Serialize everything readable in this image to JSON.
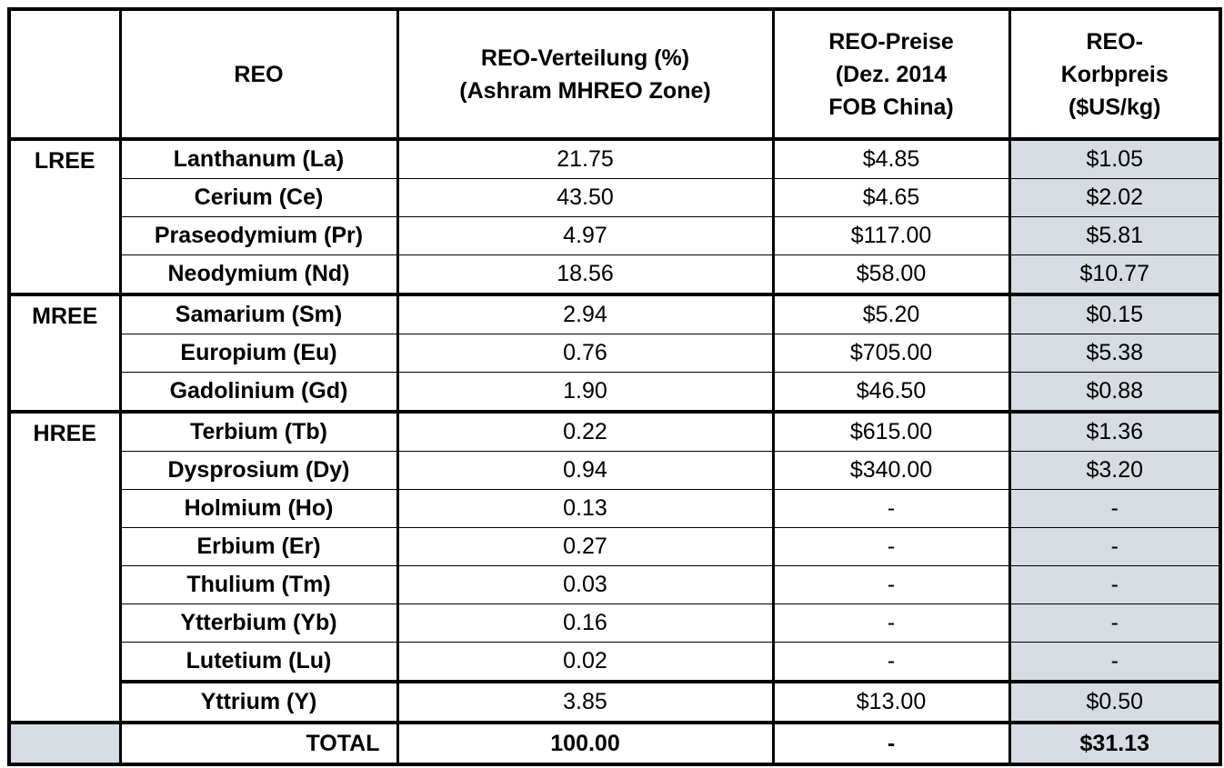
{
  "table": {
    "columns": [
      [
        "REO"
      ],
      [
        "REO-Verteilung (%)",
        "(Ashram MHREO Zone)"
      ],
      [
        "REO-Preise",
        "(Dez. 2014",
        "FOB China)"
      ],
      [
        "REO-",
        "Korbpreis",
        "($US/kg)"
      ]
    ],
    "groups": [
      {
        "name": "LREE",
        "rows": [
          [
            "Lanthanum (La)",
            "21.75",
            "$4.85",
            "$1.05"
          ],
          [
            "Cerium (Ce)",
            "43.50",
            "$4.65",
            "$2.02"
          ],
          [
            "Praseodymium (Pr)",
            "4.97",
            "$117.00",
            "$5.81"
          ],
          [
            "Neodymium (Nd)",
            "18.56",
            "$58.00",
            "$10.77"
          ]
        ]
      },
      {
        "name": "MREE",
        "rows": [
          [
            "Samarium (Sm)",
            "2.94",
            "$5.20",
            "$0.15"
          ],
          [
            "Europium (Eu)",
            "0.76",
            "$705.00",
            "$5.38"
          ],
          [
            "Gadolinium (Gd)",
            "1.90",
            "$46.50",
            "$0.88"
          ]
        ]
      },
      {
        "name": "HREE",
        "rows": [
          [
            "Terbium (Tb)",
            "0.22",
            "$615.00",
            "$1.36"
          ],
          [
            "Dysprosium (Dy)",
            "0.94",
            "$340.00",
            "$3.20"
          ],
          [
            "Holmium (Ho)",
            "0.13",
            "-",
            "-"
          ],
          [
            "Erbium (Er)",
            "0.27",
            "-",
            "-"
          ],
          [
            "Thulium (Tm)",
            "0.03",
            "-",
            "-"
          ],
          [
            "Ytterbium (Yb)",
            "0.16",
            "-",
            "-"
          ],
          [
            "Lutetium (Lu)",
            "0.02",
            "-",
            "-"
          ],
          [
            "Yttrium (Y)",
            "3.85",
            "$13.00",
            "$0.50"
          ]
        ]
      }
    ],
    "total": [
      "TOTAL",
      "100.00",
      "-",
      "$31.13"
    ]
  }
}
